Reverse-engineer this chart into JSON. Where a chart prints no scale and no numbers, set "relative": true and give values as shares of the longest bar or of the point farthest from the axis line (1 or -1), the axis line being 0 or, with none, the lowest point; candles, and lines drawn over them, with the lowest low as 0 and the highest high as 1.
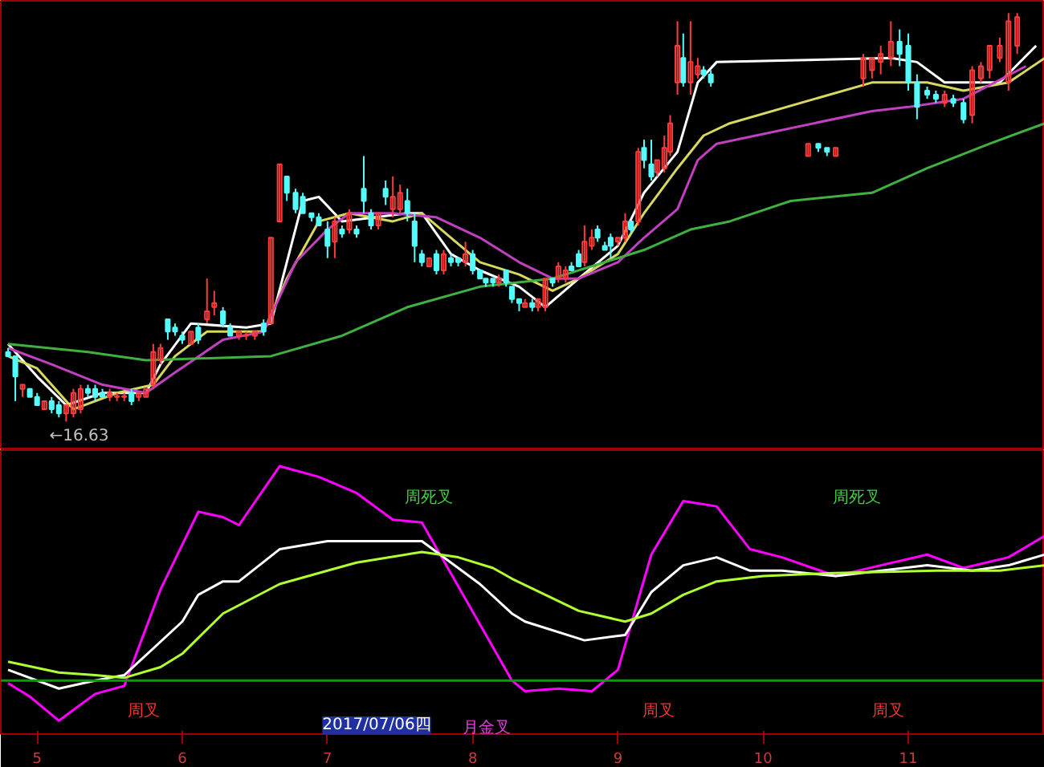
{
  "chart_data": [
    {
      "type": "candlestick",
      "relative": true,
      "tick_labels": false,
      "xlim": [
        4.75,
        11.94
      ],
      "xticks": [
        5,
        6,
        7,
        8,
        9,
        10,
        11
      ],
      "x": [
        4.8,
        4.85,
        4.9,
        4.95,
        5.0,
        5.05,
        5.1,
        5.15,
        5.2,
        5.25,
        5.3,
        5.35,
        5.4,
        5.45,
        5.5,
        5.55,
        5.6,
        5.65,
        5.7,
        5.75,
        5.8,
        5.85,
        5.9,
        5.95,
        6.0,
        6.06,
        6.11,
        6.17,
        6.22,
        6.28,
        6.33,
        6.39,
        6.44,
        6.5,
        6.56,
        6.61,
        6.67,
        6.72,
        6.78,
        6.83,
        6.89,
        6.94,
        7.0,
        7.05,
        7.1,
        7.15,
        7.2,
        7.25,
        7.3,
        7.35,
        7.4,
        7.45,
        7.5,
        7.55,
        7.6,
        7.65,
        7.7,
        7.75,
        7.8,
        7.85,
        7.9,
        7.95,
        8.0,
        8.05,
        8.09,
        8.14,
        8.18,
        8.23,
        8.27,
        8.32,
        8.36,
        8.41,
        8.45,
        8.5,
        8.55,
        8.59,
        8.64,
        8.68,
        8.73,
        8.77,
        8.82,
        8.86,
        8.91,
        8.95,
        9.0,
        9.05,
        9.09,
        9.14,
        9.18,
        9.23,
        9.27,
        9.32,
        9.36,
        9.41,
        9.45,
        9.5,
        9.55,
        9.59,
        9.64,
        10.31,
        10.38,
        10.44,
        10.5,
        10.69,
        10.75,
        10.81,
        10.88,
        10.94,
        11.0,
        11.06,
        11.13,
        11.19,
        11.25,
        11.31,
        11.38,
        11.44,
        11.5,
        11.56,
        11.63,
        11.69,
        11.75
      ],
      "ohlc": [
        [
          0.17,
          0.18,
          0.16,
          0.16
        ],
        [
          0.16,
          0.16,
          0.05,
          0.11
        ],
        [
          0.08,
          0.09,
          0.06,
          0.09
        ],
        [
          0.08,
          0.08,
          0.06,
          0.06
        ],
        [
          0.06,
          0.07,
          0.04,
          0.04
        ],
        [
          0.03,
          0.05,
          0.03,
          0.05
        ],
        [
          0.05,
          0.06,
          0.02,
          0.03
        ],
        [
          0.04,
          0.05,
          0.01,
          0.02
        ],
        [
          0.02,
          0.04,
          0,
          0.04
        ],
        [
          0.02,
          0.08,
          0.01,
          0.07
        ],
        [
          0.03,
          0.09,
          0.02,
          0.08
        ],
        [
          0.08,
          0.09,
          0.06,
          0.07
        ],
        [
          0.08,
          0.09,
          0.05,
          0.06
        ],
        [
          0.07,
          0.08,
          0.06,
          0.06
        ],
        [
          0.06,
          0.08,
          0.05,
          0.07
        ],
        [
          0.06,
          0.07,
          0.05,
          0.06
        ],
        [
          0.06,
          0.07,
          0.05,
          0.06
        ],
        [
          0.07,
          0.08,
          0.04,
          0.05
        ],
        [
          0.06,
          0.07,
          0.05,
          0.07
        ],
        [
          0.06,
          0.08,
          0.06,
          0.08
        ],
        [
          0.09,
          0.19,
          0.08,
          0.17
        ],
        [
          0.15,
          0.19,
          0.14,
          0.18
        ],
        [
          0.25,
          0.25,
          0.2,
          0.22
        ],
        [
          0.23,
          0.24,
          0.21,
          0.22
        ],
        [
          0.21,
          0.22,
          0.19,
          0.2
        ],
        [
          0.19,
          0.22,
          0.19,
          0.22
        ],
        [
          0.23,
          0.24,
          0.19,
          0.2
        ],
        [
          0.25,
          0.35,
          0.24,
          0.27
        ],
        [
          0.28,
          0.32,
          0.26,
          0.29
        ],
        [
          0.27,
          0.28,
          0.23,
          0.24
        ],
        [
          0.23,
          0.24,
          0.21,
          0.21
        ],
        [
          0.21,
          0.22,
          0.2,
          0.22
        ],
        [
          0.21,
          0.22,
          0.2,
          0.21
        ],
        [
          0.21,
          0.22,
          0.2,
          0.22
        ],
        [
          0.24,
          0.25,
          0.21,
          0.22
        ],
        [
          0.24,
          0.45,
          0.24,
          0.45
        ],
        [
          0.49,
          0.63,
          0.49,
          0.63
        ],
        [
          0.6,
          0.6,
          0.54,
          0.56
        ],
        [
          0.56,
          0.57,
          0.51,
          0.52
        ],
        [
          0.55,
          0.56,
          0.51,
          0.51
        ],
        [
          0.51,
          0.51,
          0.49,
          0.5
        ],
        [
          0.5,
          0.51,
          0.48,
          0.48
        ],
        [
          0.47,
          0.49,
          0.4,
          0.43
        ],
        [
          0.44,
          0.5,
          0.4,
          0.49
        ],
        [
          0.47,
          0.48,
          0.45,
          0.46
        ],
        [
          0.47,
          0.52,
          0.46,
          0.51
        ],
        [
          0.47,
          0.48,
          0.45,
          0.46
        ],
        [
          0.57,
          0.65,
          0.51,
          0.54
        ],
        [
          0.51,
          0.52,
          0.47,
          0.48
        ],
        [
          0.48,
          0.51,
          0.47,
          0.51
        ],
        [
          0.57,
          0.59,
          0.53,
          0.55
        ],
        [
          0.52,
          0.6,
          0.5,
          0.55
        ],
        [
          0.52,
          0.58,
          0.51,
          0.56
        ],
        [
          0.54,
          0.57,
          0.49,
          0.51
        ],
        [
          0.49,
          0.51,
          0.39,
          0.43
        ],
        [
          0.41,
          0.42,
          0.38,
          0.39
        ],
        [
          0.38,
          0.4,
          0.38,
          0.4
        ],
        [
          0.41,
          0.42,
          0.36,
          0.37
        ],
        [
          0.37,
          0.42,
          0.36,
          0.41
        ],
        [
          0.4,
          0.41,
          0.38,
          0.39
        ],
        [
          0.4,
          0.4,
          0.38,
          0.39
        ],
        [
          0.39,
          0.44,
          0.38,
          0.41
        ],
        [
          0.41,
          0.42,
          0.36,
          0.37
        ],
        [
          0.37,
          0.37,
          0.35,
          0.35
        ],
        [
          0.35,
          0.35,
          0.33,
          0.34
        ],
        [
          0.35,
          0.35,
          0.33,
          0.34
        ],
        [
          0.34,
          0.36,
          0.33,
          0.35
        ],
        [
          0.37,
          0.37,
          0.33,
          0.34
        ],
        [
          0.33,
          0.33,
          0.29,
          0.3
        ],
        [
          0.3,
          0.3,
          0.27,
          0.29
        ],
        [
          0.28,
          0.3,
          0.28,
          0.29
        ],
        [
          0.29,
          0.3,
          0.27,
          0.28
        ],
        [
          0.28,
          0.3,
          0.27,
          0.3
        ],
        [
          0.28,
          0.35,
          0.27,
          0.35
        ],
        [
          0.35,
          0.35,
          0.33,
          0.34
        ],
        [
          0.35,
          0.39,
          0.34,
          0.38
        ],
        [
          0.35,
          0.38,
          0.34,
          0.37
        ],
        [
          0.38,
          0.39,
          0.37,
          0.37
        ],
        [
          0.41,
          0.42,
          0.38,
          0.38
        ],
        [
          0.39,
          0.48,
          0.38,
          0.44
        ],
        [
          0.43,
          0.47,
          0.42,
          0.45
        ],
        [
          0.47,
          0.48,
          0.44,
          0.45
        ],
        [
          0.43,
          0.44,
          0.42,
          0.42
        ],
        [
          0.45,
          0.46,
          0.4,
          0.43
        ],
        [
          0.44,
          0.45,
          0.43,
          0.45
        ],
        [
          0.45,
          0.51,
          0.44,
          0.49
        ],
        [
          0.49,
          0.49,
          0.46,
          0.47
        ],
        [
          0.49,
          0.67,
          0.48,
          0.66
        ],
        [
          0.67,
          0.69,
          0.62,
          0.64
        ],
        [
          0.63,
          0.69,
          0.59,
          0.6
        ],
        [
          0.61,
          0.64,
          0.6,
          0.64
        ],
        [
          0.62,
          0.7,
          0.61,
          0.67
        ],
        [
          0.66,
          0.75,
          0.65,
          0.73
        ],
        [
          0.83,
          0.98,
          0.8,
          0.92
        ],
        [
          0.89,
          0.95,
          0.82,
          0.83
        ],
        [
          0.83,
          0.98,
          0.8,
          0.88
        ],
        [
          0.85,
          0.89,
          0.84,
          0.87
        ],
        [
          0.86,
          0.87,
          0.84,
          0.85
        ],
        [
          0.85,
          0.86,
          0.82,
          0.83
        ],
        [
          0.65,
          0.68,
          0.65,
          0.68
        ],
        [
          0.68,
          0.68,
          0.66,
          0.67
        ],
        [
          0.67,
          0.67,
          0.65,
          0.66
        ],
        [
          0.65,
          0.67,
          0.65,
          0.67
        ],
        [
          0.84,
          0.9,
          0.82,
          0.89
        ],
        [
          0.86,
          0.89,
          0.84,
          0.89
        ],
        [
          0.88,
          0.92,
          0.85,
          0.9
        ],
        [
          0.89,
          0.98,
          0.87,
          0.93
        ],
        [
          0.93,
          0.96,
          0.87,
          0.9
        ],
        [
          0.92,
          0.95,
          0.81,
          0.83
        ],
        [
          0.83,
          0.85,
          0.74,
          0.77
        ],
        [
          0.81,
          0.82,
          0.79,
          0.8
        ],
        [
          0.8,
          0.81,
          0.78,
          0.79
        ],
        [
          0.78,
          0.81,
          0.77,
          0.8
        ],
        [
          0.79,
          0.8,
          0.77,
          0.78
        ],
        [
          0.78,
          0.79,
          0.73,
          0.74
        ],
        [
          0.75,
          0.87,
          0.73,
          0.86
        ],
        [
          0.84,
          0.88,
          0.83,
          0.87
        ],
        [
          0.86,
          0.92,
          0.84,
          0.92
        ],
        [
          0.89,
          0.94,
          0.88,
          0.92
        ],
        [
          0.83,
          1,
          0.81,
          0.98
        ],
        [
          0.92,
          1,
          0.9,
          0.99
        ]
      ],
      "series": [
        {
          "type": "line",
          "color": "#ffffff",
          "x": [
            4.8,
            5.0,
            5.2,
            5.45,
            5.75,
            5.85,
            6.06,
            6.44,
            6.61,
            6.83,
            6.94,
            7.1,
            7.55,
            7.65,
            7.85,
            8.05,
            8.32,
            8.5,
            8.73,
            9.0,
            9.18,
            9.41,
            9.55,
            9.68,
            10.88,
            11.06,
            11.25,
            11.63,
            11.88
          ],
          "values": [
            0.19,
            0.11,
            0.04,
            0.07,
            0.07,
            0.14,
            0.24,
            0.23,
            0.24,
            0.54,
            0.55,
            0.49,
            0.51,
            0.51,
            0.41,
            0.37,
            0.33,
            0.28,
            0.35,
            0.43,
            0.56,
            0.66,
            0.83,
            0.88,
            0.89,
            0.88,
            0.83,
            0.83,
            0.92
          ]
        },
        {
          "type": "line",
          "color": "#d8d860",
          "x": [
            4.8,
            5.0,
            5.25,
            5.55,
            5.8,
            5.95,
            6.17,
            6.56,
            6.72,
            6.94,
            7.15,
            7.45,
            7.65,
            7.85,
            8.05,
            8.32,
            8.55,
            8.73,
            9.0,
            9.18,
            9.41,
            9.59,
            9.77,
            10.75,
            11.13,
            11.38,
            11.69,
            11.94
          ],
          "values": [
            0.16,
            0.13,
            0.03,
            0.07,
            0.09,
            0.16,
            0.22,
            0.22,
            0.35,
            0.49,
            0.51,
            0.49,
            0.51,
            0.45,
            0.39,
            0.36,
            0.32,
            0.35,
            0.41,
            0.51,
            0.62,
            0.7,
            0.73,
            0.83,
            0.83,
            0.81,
            0.83,
            0.89
          ]
        },
        {
          "type": "line",
          "color": "#c040c0",
          "x": [
            4.8,
            5.1,
            5.45,
            5.75,
            5.95,
            6.28,
            6.56,
            6.78,
            7.0,
            7.15,
            7.45,
            7.75,
            8.05,
            8.32,
            8.55,
            8.73,
            9.0,
            9.18,
            9.41,
            9.55,
            9.68,
            10.75,
            11.0,
            11.38,
            11.81
          ],
          "values": [
            0.18,
            0.14,
            0.09,
            0.07,
            0.12,
            0.2,
            0.22,
            0.39,
            0.47,
            0.51,
            0.51,
            0.5,
            0.45,
            0.39,
            0.35,
            0.35,
            0.39,
            0.45,
            0.52,
            0.64,
            0.68,
            0.76,
            0.77,
            0.79,
            0.87
          ]
        },
        {
          "type": "line",
          "color": "#40b040",
          "x": [
            4.8,
            5.35,
            5.75,
            6.61,
            7.1,
            7.55,
            8.05,
            8.55,
            9.0,
            9.18,
            9.5,
            9.77,
            10.19,
            10.75,
            11.13,
            11.56,
            11.94
          ],
          "values": [
            0.19,
            0.17,
            0.15,
            0.16,
            0.21,
            0.28,
            0.33,
            0.35,
            0.4,
            0.42,
            0.47,
            0.49,
            0.54,
            0.56,
            0.62,
            0.68,
            0.73
          ]
        }
      ],
      "annotations": [
        "←16.63"
      ]
    },
    {
      "type": "line",
      "relative": true,
      "tick_labels": "x",
      "xlim": [
        4.75,
        11.94
      ],
      "xticks": [
        5,
        6,
        7,
        8,
        9,
        10,
        11
      ],
      "series": [
        {
          "color": "#ff00ff",
          "x": [
            4.8,
            4.95,
            5.15,
            5.4,
            5.6,
            5.85,
            6.11,
            6.28,
            6.39,
            6.67,
            6.94,
            7.2,
            7.45,
            7.65,
            8.27,
            8.36,
            8.59,
            8.82,
            9.0,
            9.23,
            9.45,
            9.68,
            9.91,
            10.13,
            10.5,
            10.81,
            11.13,
            11.38,
            11.69,
            11.94
          ],
          "values": [
            0.19,
            0.14,
            0.05,
            0.15,
            0.18,
            0.54,
            0.83,
            0.81,
            0.78,
            1.0,
            0.96,
            0.9,
            0.8,
            0.79,
            0.2,
            0.16,
            0.17,
            0.16,
            0.24,
            0.67,
            0.87,
            0.85,
            0.69,
            0.66,
            0.59,
            0.63,
            0.67,
            0.62,
            0.66,
            0.74
          ]
        },
        {
          "color": "#ffffff",
          "x": [
            4.8,
            5.15,
            5.4,
            5.6,
            6.0,
            6.11,
            6.28,
            6.39,
            6.67,
            7.0,
            7.15,
            7.45,
            7.65,
            8.05,
            8.27,
            8.36,
            8.77,
            9.05,
            9.23,
            9.45,
            9.68,
            9.91,
            10.13,
            10.5,
            11.13,
            11.44,
            11.69,
            11.94
          ],
          "values": [
            0.24,
            0.17,
            0.2,
            0.22,
            0.42,
            0.52,
            0.57,
            0.57,
            0.69,
            0.72,
            0.72,
            0.72,
            0.72,
            0.56,
            0.45,
            0.42,
            0.35,
            0.37,
            0.53,
            0.63,
            0.66,
            0.61,
            0.61,
            0.59,
            0.63,
            0.61,
            0.63,
            0.67
          ]
        },
        {
          "color": "#b0ff30",
          "x": [
            4.8,
            5.15,
            5.4,
            5.6,
            5.85,
            6.0,
            6.28,
            6.67,
            7.0,
            7.2,
            7.65,
            7.9,
            8.14,
            8.27,
            8.73,
            9.05,
            9.23,
            9.45,
            9.68,
            10.0,
            10.44,
            11.19,
            11.63,
            11.94
          ],
          "values": [
            0.27,
            0.23,
            0.22,
            0.21,
            0.25,
            0.3,
            0.45,
            0.56,
            0.61,
            0.64,
            0.68,
            0.66,
            0.62,
            0.58,
            0.46,
            0.42,
            0.45,
            0.52,
            0.57,
            0.59,
            0.6,
            0.61,
            0.61,
            0.63
          ]
        }
      ],
      "ref_lines": [
        {
          "axis": "y",
          "value": 0.2,
          "color": "#00a000"
        }
      ],
      "annotations": [
        "周死叉",
        "周死叉",
        "周叉",
        "周叉",
        "周叉",
        "月金叉",
        "2017/07/06四"
      ]
    }
  ]
}
